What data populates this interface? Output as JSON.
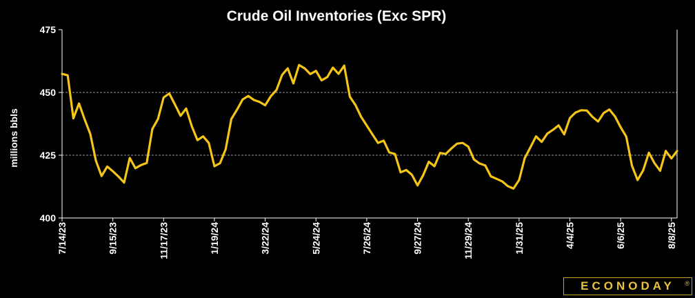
{
  "colors": {
    "background": "#000000",
    "line": "#f5c518",
    "text": "#ffffff",
    "grid": "#9a9a9a",
    "brand": "#e8c23a"
  },
  "logo": {
    "text": "ECONODAY",
    "mark": "®"
  },
  "chart_data": {
    "type": "line",
    "title": "Crude Oil Inventories (Exc SPR)",
    "ylabel": "millions bbls",
    "xlabel": "",
    "ylim": [
      400,
      475
    ],
    "yticks": [
      400,
      425,
      450,
      475
    ],
    "gridlines": [
      425,
      450
    ],
    "grid": "horizontal dashed",
    "legend": "none",
    "x_tick_labels": [
      "7/14/23",
      "9/15/23",
      "11/17/23",
      "1/19/24",
      "3/22/24",
      "5/24/24",
      "7/26/24",
      "9/27/24",
      "11/29/24",
      "1/31/25",
      "4/4/25",
      "6/6/25",
      "8/8/25"
    ],
    "x_tick_index": [
      0,
      9,
      18,
      27,
      36,
      45,
      54,
      63,
      72,
      81,
      90,
      99,
      108
    ],
    "series": [
      {
        "name": "",
        "values": [
          457.4,
          456.8,
          439.7,
          445.6,
          439.3,
          433.5,
          422.8,
          416.7,
          420.5,
          418.6,
          416.5,
          414.1,
          423.9,
          419.8,
          421.1,
          421.9,
          435.4,
          439.4,
          448.0,
          449.6,
          445.2,
          440.7,
          443.6,
          436.5,
          431.0,
          432.5,
          429.9,
          420.6,
          421.8,
          427.4,
          439.4,
          443.1,
          447.2,
          448.6,
          447.0,
          446.2,
          444.9,
          448.5,
          451.0,
          457.0,
          459.6,
          453.6,
          460.9,
          459.6,
          457.3,
          458.6,
          454.8,
          456.1,
          459.9,
          457.4,
          460.7,
          448.3,
          445.0,
          440.3,
          436.8,
          433.3,
          429.9,
          430.8,
          426.1,
          425.5,
          418.2,
          419.1,
          417.2,
          413.0,
          417.0,
          422.4,
          420.6,
          425.9,
          425.5,
          427.7,
          429.6,
          429.9,
          428.4,
          423.3,
          421.7,
          420.9,
          416.6,
          415.6,
          414.6,
          412.7,
          411.7,
          415.1,
          423.8,
          428.1,
          432.5,
          430.3,
          433.6,
          435.1,
          436.9,
          433.3,
          439.8,
          442.0,
          442.9,
          442.8,
          440.3,
          438.4,
          441.8,
          443.2,
          440.4,
          436.1,
          432.4,
          420.9,
          415.1,
          419.0,
          426.0,
          421.8,
          418.8,
          426.7,
          423.7,
          426.7
        ]
      }
    ]
  }
}
